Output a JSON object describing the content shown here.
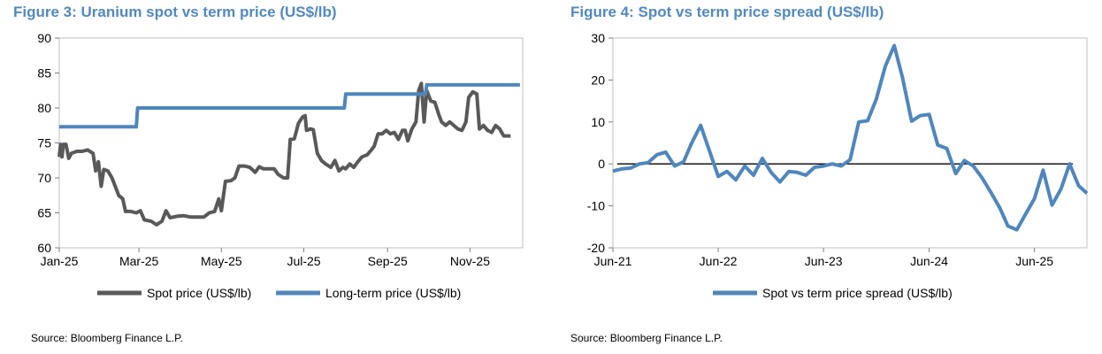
{
  "colors": {
    "title": "#5189c1",
    "spot": "#595959",
    "long_term": "#4f86bd",
    "spread": "#4f86bd",
    "zero_line": "#000000",
    "frame": "#bfbfbf"
  },
  "figure3": {
    "title": "Figure 3: Uranium spot vs term price (US$/lb)",
    "source": "Source: Bloomberg Finance L.P."
  },
  "figure4": {
    "title": "Figure 4: Spot vs term price spread (US$/lb)",
    "source": "Source: Bloomberg Finance L.P."
  },
  "chart_data": [
    {
      "type": "line",
      "title": "Figure 3: Uranium spot vs term price (US$/lb)",
      "xlabel": "",
      "ylabel": "",
      "x_type": "date",
      "xlim": [
        "2025-01-01",
        "2025-12-10"
      ],
      "ylim": [
        60,
        90
      ],
      "x_ticks": [
        "2025-01-01",
        "2025-03-01",
        "2025-05-01",
        "2025-07-01",
        "2025-09-01",
        "2025-11-01"
      ],
      "x_tick_labels": [
        "Jan-25",
        "Mar-25",
        "May-25",
        "Jul-25",
        "Sep-25",
        "Nov-25"
      ],
      "y_ticks": [
        60,
        65,
        70,
        75,
        80,
        85,
        90
      ],
      "legend": "bottom",
      "grid": false,
      "series": [
        {
          "name": "Spot price (US$/lb)",
          "style": "line",
          "points": [
            [
              "2025-01-01",
              73.0
            ],
            [
              "2025-01-02",
              74.8
            ],
            [
              "2025-01-03",
              73.0
            ],
            [
              "2025-01-04",
              74.8
            ],
            [
              "2025-01-06",
              74.8
            ],
            [
              "2025-01-08",
              72.8
            ],
            [
              "2025-01-10",
              73.5
            ],
            [
              "2025-01-14",
              73.8
            ],
            [
              "2025-01-18",
              73.8
            ],
            [
              "2025-01-22",
              74.0
            ],
            [
              "2025-01-26",
              73.5
            ],
            [
              "2025-01-28",
              71.0
            ],
            [
              "2025-01-30",
              72.3
            ],
            [
              "2025-02-01",
              68.8
            ],
            [
              "2025-02-03",
              71.2
            ],
            [
              "2025-02-06",
              71.0
            ],
            [
              "2025-02-09",
              70.0
            ],
            [
              "2025-02-12",
              68.5
            ],
            [
              "2025-02-14",
              67.5
            ],
            [
              "2025-02-17",
              67.0
            ],
            [
              "2025-02-19",
              65.2
            ],
            [
              "2025-02-23",
              65.2
            ],
            [
              "2025-02-27",
              65.0
            ],
            [
              "2025-03-02",
              65.3
            ],
            [
              "2025-03-05",
              64.0
            ],
            [
              "2025-03-10",
              63.8
            ],
            [
              "2025-03-14",
              63.3
            ],
            [
              "2025-03-18",
              63.8
            ],
            [
              "2025-03-21",
              65.3
            ],
            [
              "2025-03-24",
              64.3
            ],
            [
              "2025-03-29",
              64.5
            ],
            [
              "2025-04-03",
              64.6
            ],
            [
              "2025-04-08",
              64.4
            ],
            [
              "2025-04-13",
              64.4
            ],
            [
              "2025-04-18",
              64.4
            ],
            [
              "2025-04-22",
              65.0
            ],
            [
              "2025-04-26",
              65.2
            ],
            [
              "2025-04-29",
              67.0
            ],
            [
              "2025-05-01",
              65.3
            ],
            [
              "2025-05-04",
              69.5
            ],
            [
              "2025-05-08",
              69.6
            ],
            [
              "2025-05-11",
              70.0
            ],
            [
              "2025-05-14",
              71.7
            ],
            [
              "2025-05-18",
              71.7
            ],
            [
              "2025-05-22",
              71.5
            ],
            [
              "2025-05-26",
              70.8
            ],
            [
              "2025-05-29",
              71.6
            ],
            [
              "2025-06-01",
              71.3
            ],
            [
              "2025-06-05",
              71.3
            ],
            [
              "2025-06-09",
              71.3
            ],
            [
              "2025-06-12",
              70.5
            ],
            [
              "2025-06-16",
              70.0
            ],
            [
              "2025-06-19",
              70.0
            ],
            [
              "2025-06-21",
              75.5
            ],
            [
              "2025-06-24",
              75.6
            ],
            [
              "2025-06-27",
              77.8
            ],
            [
              "2025-06-30",
              78.7
            ],
            [
              "2025-07-02",
              78.9
            ],
            [
              "2025-07-03",
              76.8
            ],
            [
              "2025-07-06",
              77.0
            ],
            [
              "2025-07-08",
              76.9
            ],
            [
              "2025-07-11",
              73.5
            ],
            [
              "2025-07-14",
              72.5
            ],
            [
              "2025-07-17",
              72.0
            ],
            [
              "2025-07-21",
              71.5
            ],
            [
              "2025-07-24",
              72.5
            ],
            [
              "2025-07-27",
              71.0
            ],
            [
              "2025-07-30",
              71.5
            ],
            [
              "2025-08-01",
              71.3
            ],
            [
              "2025-08-04",
              72.0
            ],
            [
              "2025-08-07",
              71.5
            ],
            [
              "2025-08-10",
              72.3
            ],
            [
              "2025-08-13",
              73.0
            ],
            [
              "2025-08-17",
              73.3
            ],
            [
              "2025-08-20",
              74.0
            ],
            [
              "2025-08-22",
              74.5
            ],
            [
              "2025-08-25",
              76.3
            ],
            [
              "2025-08-28",
              76.3
            ],
            [
              "2025-08-31",
              76.8
            ],
            [
              "2025-09-03",
              76.3
            ],
            [
              "2025-09-06",
              76.5
            ],
            [
              "2025-09-09",
              75.5
            ],
            [
              "2025-09-12",
              76.8
            ],
            [
              "2025-09-14",
              76.8
            ],
            [
              "2025-09-16",
              75.3
            ],
            [
              "2025-09-19",
              77.0
            ],
            [
              "2025-09-22",
              78.0
            ],
            [
              "2025-09-24",
              82.5
            ],
            [
              "2025-09-26",
              83.5
            ],
            [
              "2025-09-28",
              78.0
            ],
            [
              "2025-09-30",
              82.5
            ],
            [
              "2025-10-03",
              81.0
            ],
            [
              "2025-10-06",
              80.8
            ],
            [
              "2025-10-09",
              79.0
            ],
            [
              "2025-10-11",
              78.0
            ],
            [
              "2025-10-14",
              77.5
            ],
            [
              "2025-10-17",
              78.0
            ],
            [
              "2025-10-20",
              77.5
            ],
            [
              "2025-10-23",
              77.0
            ],
            [
              "2025-10-26",
              76.8
            ],
            [
              "2025-10-29",
              78.0
            ],
            [
              "2025-10-31",
              81.5
            ],
            [
              "2025-11-03",
              82.3
            ],
            [
              "2025-11-06",
              82.0
            ],
            [
              "2025-11-08",
              77.0
            ],
            [
              "2025-11-11",
              77.5
            ],
            [
              "2025-11-14",
              76.8
            ],
            [
              "2025-11-17",
              76.5
            ],
            [
              "2025-11-20",
              77.5
            ],
            [
              "2025-11-23",
              77.0
            ],
            [
              "2025-11-26",
              76.0
            ],
            [
              "2025-11-28",
              76.0
            ],
            [
              "2025-12-01",
              76.0
            ]
          ]
        },
        {
          "name": "Long-term price (US$/lb)",
          "style": "step",
          "points": [
            [
              "2025-01-01",
              77.3
            ],
            [
              "2025-02-27",
              77.3
            ],
            [
              "2025-02-28",
              80.0
            ],
            [
              "2025-07-31",
              80.0
            ],
            [
              "2025-08-01",
              82.0
            ],
            [
              "2025-09-29",
              82.0
            ],
            [
              "2025-09-30",
              83.3
            ],
            [
              "2025-12-08",
              83.3
            ]
          ]
        }
      ]
    },
    {
      "type": "line",
      "title": "Figure 4: Spot vs term price spread (US$/lb)",
      "xlabel": "",
      "ylabel": "",
      "x_type": "date",
      "xlim": [
        "2021-06-01",
        "2025-11-30"
      ],
      "ylim": [
        -20,
        30
      ],
      "x_ticks": [
        "2021-06-01",
        "2022-06-01",
        "2023-06-01",
        "2024-06-01",
        "2025-06-01"
      ],
      "x_tick_labels": [
        "Jun-21",
        "Jun-22",
        "Jun-23",
        "Jun-24",
        "Jun-25"
      ],
      "y_ticks": [
        -20,
        -10,
        0,
        10,
        20,
        30
      ],
      "legend": "bottom",
      "grid": false,
      "zero_line": true,
      "series": [
        {
          "name": "Spot vs term price spread (US$/lb)",
          "style": "line",
          "points": [
            [
              "2021-06-01",
              -1.7
            ],
            [
              "2021-07-01",
              -1.2
            ],
            [
              "2021-08-01",
              -1.0
            ],
            [
              "2021-09-01",
              0.0
            ],
            [
              "2021-10-01",
              0.3
            ],
            [
              "2021-11-01",
              2.2
            ],
            [
              "2021-12-01",
              2.8
            ],
            [
              "2022-01-01",
              -0.5
            ],
            [
              "2022-02-01",
              0.5
            ],
            [
              "2022-03-01",
              5.0
            ],
            [
              "2022-04-01",
              9.2
            ],
            [
              "2022-05-01",
              3.2
            ],
            [
              "2022-06-01",
              -3.0
            ],
            [
              "2022-07-01",
              -1.8
            ],
            [
              "2022-08-01",
              -3.8
            ],
            [
              "2022-09-01",
              -0.5
            ],
            [
              "2022-10-01",
              -2.7
            ],
            [
              "2022-11-01",
              1.3
            ],
            [
              "2022-12-01",
              -2.0
            ],
            [
              "2023-01-01",
              -4.3
            ],
            [
              "2023-02-01",
              -1.8
            ],
            [
              "2023-03-01",
              -2.0
            ],
            [
              "2023-04-01",
              -2.7
            ],
            [
              "2023-05-01",
              -0.8
            ],
            [
              "2023-06-01",
              -0.5
            ],
            [
              "2023-07-01",
              0.0
            ],
            [
              "2023-08-01",
              -0.5
            ],
            [
              "2023-09-01",
              1.0
            ],
            [
              "2023-10-01",
              10.0
            ],
            [
              "2023-11-01",
              10.3
            ],
            [
              "2023-12-01",
              15.5
            ],
            [
              "2024-01-01",
              23.3
            ],
            [
              "2024-02-01",
              28.2
            ],
            [
              "2024-03-01",
              20.5
            ],
            [
              "2024-04-01",
              10.2
            ],
            [
              "2024-05-01",
              11.5
            ],
            [
              "2024-06-01",
              11.8
            ],
            [
              "2024-07-01",
              4.5
            ],
            [
              "2024-08-01",
              3.7
            ],
            [
              "2024-09-01",
              -2.3
            ],
            [
              "2024-10-01",
              0.8
            ],
            [
              "2024-11-01",
              -0.5
            ],
            [
              "2024-12-01",
              -3.3
            ],
            [
              "2025-01-01",
              -6.8
            ],
            [
              "2025-02-01",
              -10.5
            ],
            [
              "2025-03-01",
              -14.8
            ],
            [
              "2025-04-01",
              -15.7
            ],
            [
              "2025-05-01",
              -12.0
            ],
            [
              "2025-06-01",
              -8.3
            ],
            [
              "2025-07-01",
              -1.5
            ],
            [
              "2025-08-01",
              -9.8
            ],
            [
              "2025-09-01",
              -6.0
            ],
            [
              "2025-10-01",
              0.0
            ],
            [
              "2025-11-01",
              -5.2
            ],
            [
              "2025-11-30",
              -7.0
            ]
          ]
        }
      ]
    }
  ]
}
